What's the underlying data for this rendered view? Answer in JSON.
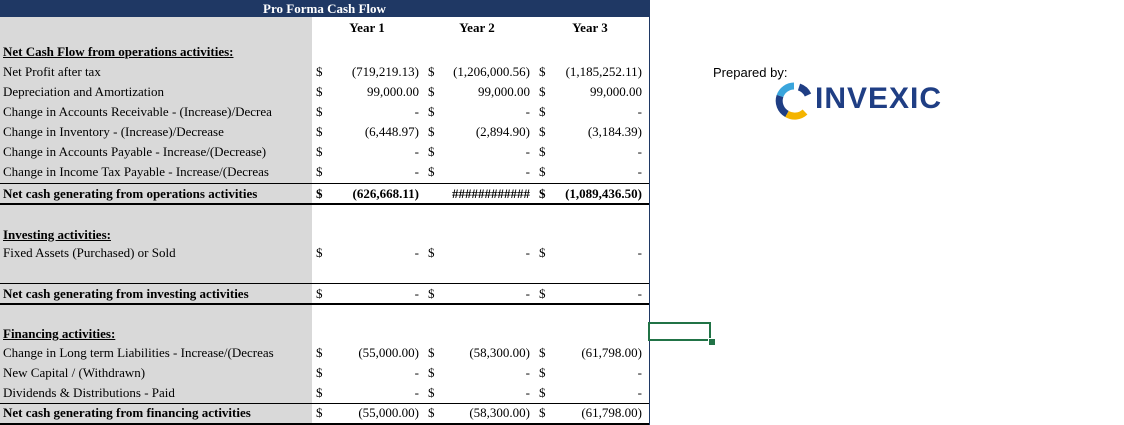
{
  "sheet": {
    "title": "Pro Forma Cash Flow",
    "years": [
      "Year 1",
      "Year 2",
      "Year 3"
    ],
    "currency_symbol": "$",
    "operations": {
      "heading": "Net Cash Flow from operations activities:",
      "rows": [
        {
          "label": "Net Profit after tax",
          "v": [
            "(719,219.13)",
            "(1,206,000.56)",
            "(1,185,252.11)"
          ]
        },
        {
          "label": "Depreciation and Amortization",
          "v": [
            "99,000.00",
            "99,000.00",
            "99,000.00"
          ]
        },
        {
          "label": "Change in Accounts Receivable - (Increase)/Decrea",
          "v": [
            "-",
            "-",
            "-"
          ]
        },
        {
          "label": "Change in Inventory - (Increase)/Decrease",
          "v": [
            "(6,448.97)",
            "(2,894.90)",
            "(3,184.39)"
          ]
        },
        {
          "label": "Change in Accounts Payable - Increase/(Decrease)",
          "v": [
            "-",
            "-",
            "-"
          ]
        },
        {
          "label": "Change in Income Tax Payable - Increase/(Decreas",
          "v": [
            "-",
            "-",
            "-"
          ]
        }
      ],
      "total_label": "Net cash generating from operations activities",
      "total": [
        "(626,668.11)",
        "############",
        "(1,089,436.50)"
      ]
    },
    "investing": {
      "heading": "Investing activities:",
      "rows": [
        {
          "label": "Fixed Assets (Purchased) or Sold",
          "v": [
            "-",
            "-",
            "-"
          ]
        }
      ],
      "total_label": "Net cash generating from investing activities",
      "total": [
        "-",
        "-",
        "-"
      ]
    },
    "financing": {
      "heading": "Financing activities:",
      "rows": [
        {
          "label": "Change in Long term Liabilities  - Increase/(Decreas",
          "v": [
            "(55,000.00)",
            "(58,300.00)",
            "(61,798.00)"
          ]
        },
        {
          "label": "New Capital / (Withdrawn)",
          "v": [
            "-",
            "-",
            "-"
          ]
        },
        {
          "label": "Dividends & Distributions - Paid",
          "v": [
            "-",
            "-",
            "-"
          ]
        }
      ],
      "total_label": "Net cash generating from financing activities",
      "total": [
        "(55,000.00)",
        "(58,300.00)",
        "(61,798.00)"
      ]
    }
  },
  "branding": {
    "prepared_by": "Prepared by:",
    "logo_text": "INVEXIC",
    "logo_colors": {
      "blue": "#1f3e84",
      "yellow": "#f4b400",
      "lightblue": "#3aa5dc"
    }
  },
  "colors": {
    "title_bg": "#1f3864",
    "label_bg": "#d9d9d9",
    "selection": "#217346"
  }
}
